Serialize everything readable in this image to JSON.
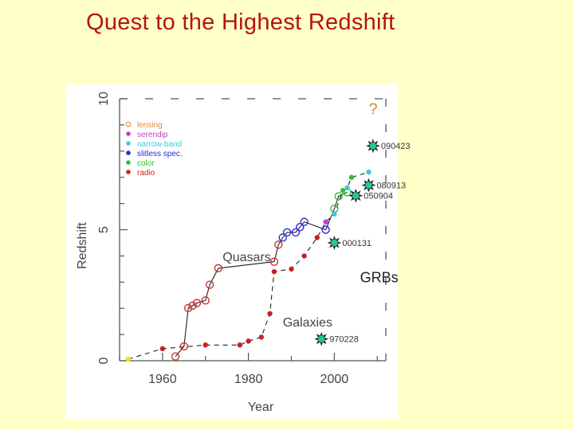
{
  "slide": {
    "title": "Quest to the Highest Redshift"
  },
  "chart_data": {
    "type": "scatter",
    "xlabel": "Year",
    "ylabel": "Redshift",
    "xlim": [
      1950,
      2012
    ],
    "ylim": [
      0,
      10
    ],
    "x_ticks": [
      "1960",
      "1980",
      "2000"
    ],
    "y_ticks": [
      "0",
      "5",
      "10"
    ],
    "question_mark": "?",
    "legend": [
      {
        "label": "lensing",
        "color": "#e08a3a"
      },
      {
        "label": "serendip",
        "color": "#c040c8"
      },
      {
        "label": "narrow-band",
        "color": "#40c8d8"
      },
      {
        "label": "slitless spec.",
        "color": "#2a2ad8"
      },
      {
        "label": "color",
        "color": "#30c030"
      },
      {
        "label": "radio",
        "color": "#d02020"
      }
    ],
    "annotations": {
      "quasars": "Quasars",
      "galaxies": "Galaxies",
      "grbs": "GRBs"
    },
    "series": [
      {
        "name": "Quasars",
        "color": "#c83232",
        "marker": "open-circle",
        "points": [
          [
            1963,
            0.16
          ],
          [
            1965,
            0.55
          ],
          [
            1966,
            2.01
          ],
          [
            1967,
            2.1
          ],
          [
            1968,
            2.2
          ],
          [
            1970,
            2.3
          ],
          [
            1971,
            2.9
          ],
          [
            1973,
            3.53
          ],
          [
            1986,
            3.78
          ],
          [
            1987,
            4.43
          ],
          [
            1988,
            4.7
          ],
          [
            1989,
            4.9
          ],
          [
            1991,
            4.9
          ],
          [
            1992,
            5.1
          ],
          [
            1993,
            5.3
          ],
          [
            1998,
            5.0
          ],
          [
            2000,
            5.8
          ],
          [
            2001,
            6.28
          ],
          [
            2003,
            6.43
          ]
        ]
      },
      {
        "name": "Galaxies",
        "color": "#c82020",
        "marker": "filled-dot",
        "points": [
          [
            1952,
            0.06
          ],
          [
            1960,
            0.46
          ],
          [
            1970,
            0.6
          ],
          [
            1978,
            0.6
          ],
          [
            1980,
            0.75
          ],
          [
            1983,
            0.9
          ],
          [
            1985,
            1.8
          ],
          [
            1986,
            3.4
          ],
          [
            1990,
            3.5
          ],
          [
            1993,
            4.0
          ],
          [
            1996,
            4.7
          ],
          [
            1998,
            5.3
          ],
          [
            2000,
            5.6
          ],
          [
            2002,
            6.5
          ],
          [
            2003,
            6.6
          ],
          [
            2004,
            7.0
          ],
          [
            2008,
            7.2
          ]
        ]
      },
      {
        "name": "GRBs",
        "color": "#2f7f5f",
        "marker": "star",
        "points": [
          {
            "x": 1997,
            "y": 0.83,
            "label": "970228"
          },
          {
            "x": 2000,
            "y": 4.5,
            "label": "000131"
          },
          {
            "x": 2005,
            "y": 6.3,
            "label": "050904"
          },
          {
            "x": 2008,
            "y": 6.7,
            "label": "080913"
          },
          {
            "x": 2009,
            "y": 8.2,
            "label": "090423"
          }
        ]
      }
    ]
  }
}
